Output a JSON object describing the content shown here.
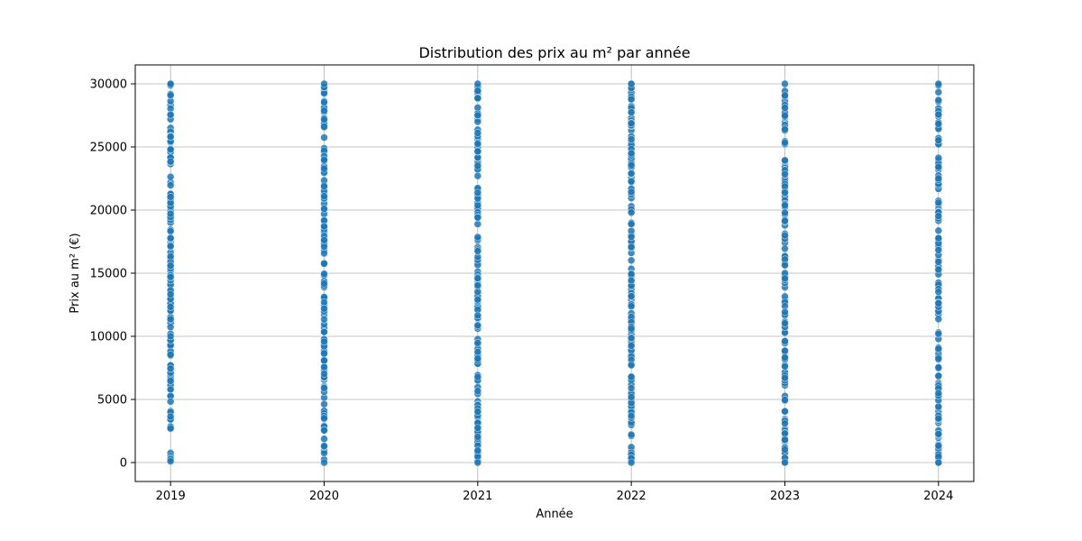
{
  "chart_data": {
    "type": "scatter",
    "title": "Distribution des prix au m² par année",
    "xlabel": "Année",
    "ylabel": "Prix au m² (€)",
    "x_categories": [
      "2019",
      "2020",
      "2021",
      "2022",
      "2023",
      "2024"
    ],
    "xlim": [
      2018.77,
      2024.23
    ],
    "ylim": [
      -1500,
      31500
    ],
    "yticks": [
      0,
      5000,
      10000,
      15000,
      20000,
      25000,
      30000
    ],
    "grid": true,
    "series": [
      {
        "marker_color": "#1f77b4",
        "points_per_year": 150,
        "y_range": [
          0,
          30000
        ],
        "points": [
          {
            "x": "2019",
            "y_min": 100,
            "y_max": 30000
          },
          {
            "x": "2020",
            "y_min": 0,
            "y_max": 30000
          },
          {
            "x": "2021",
            "y_min": 0,
            "y_max": 30000
          },
          {
            "x": "2022",
            "y_min": 0,
            "y_max": 30000
          },
          {
            "x": "2023",
            "y_min": 0,
            "y_max": 30000
          },
          {
            "x": "2024",
            "y_min": 0,
            "y_max": 30000
          }
        ]
      }
    ]
  }
}
